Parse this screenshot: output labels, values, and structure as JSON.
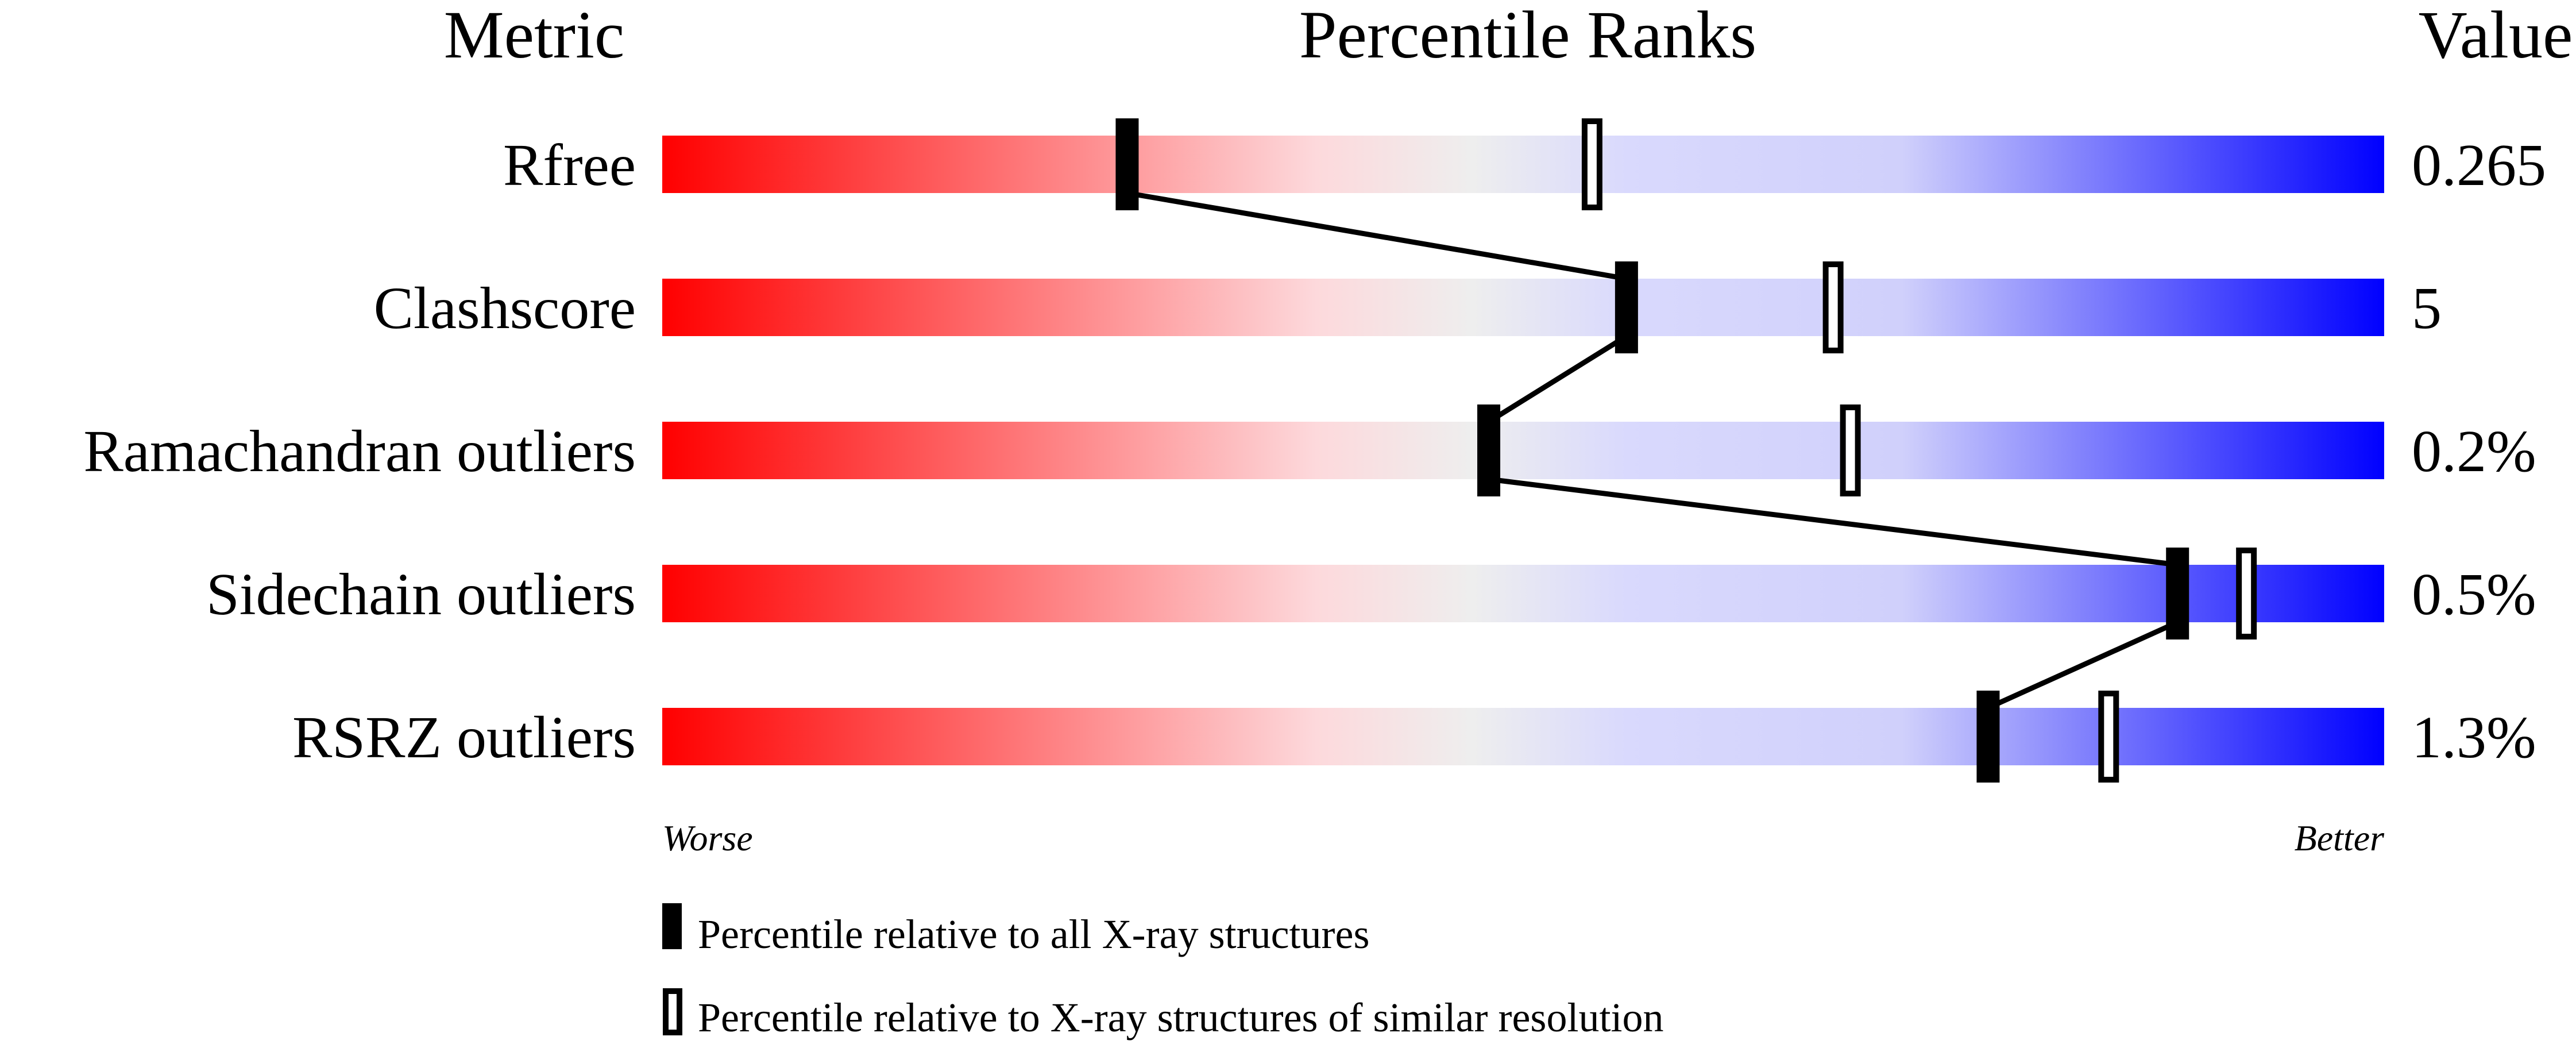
{
  "chart_data": {
    "type": "percentile-slider",
    "headers": {
      "metric": "Metric",
      "ranks": "Percentile Ranks",
      "value": "Value"
    },
    "xlim": [
      0,
      100
    ],
    "axis_labels": {
      "left": "Worse",
      "right": "Better"
    },
    "gradient_colors": [
      "#ff0000",
      "#fdd9dc",
      "#eeeeee",
      "#d9d9fd",
      "#0000ff"
    ],
    "metrics": [
      {
        "name": "Rfree",
        "value": "0.265",
        "percentile_all": 27,
        "percentile_similar": 54
      },
      {
        "name": "Clashscore",
        "value": "5",
        "percentile_all": 56,
        "percentile_similar": 68
      },
      {
        "name": "Ramachandran outliers",
        "value": "0.2%",
        "percentile_all": 48,
        "percentile_similar": 69
      },
      {
        "name": "Sidechain outliers",
        "value": "0.5%",
        "percentile_all": 88,
        "percentile_similar": 92
      },
      {
        "name": "RSRZ outliers",
        "value": "1.3%",
        "percentile_all": 77,
        "percentile_similar": 84
      }
    ],
    "legend": [
      {
        "marker": "filled",
        "label": "Percentile relative to all X-ray structures"
      },
      {
        "marker": "open",
        "label": "Percentile relative to X-ray structures of similar resolution"
      }
    ]
  }
}
